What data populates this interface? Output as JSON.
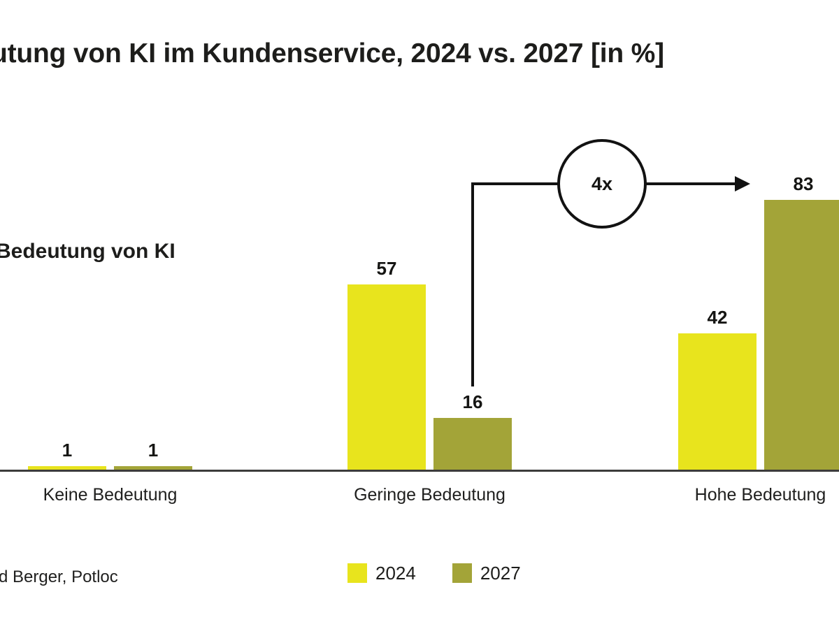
{
  "title_visible": "utung von KI im Kundenservice, 2024 vs. 2027 [in %]",
  "side_label": "Bedeutung von KI",
  "source_visible": "d Berger, Potloc",
  "annotation": {
    "label": "4x",
    "meaning": "4x increase of 2027 value from Geringe Bedeutung (16) to Hohe Bedeutung (83)"
  },
  "legend": [
    {
      "label": "2024",
      "color": "#E8E41D"
    },
    {
      "label": "2027",
      "color": "#A3A438"
    }
  ],
  "colors": {
    "series_2024": "#E8E41D",
    "series_2027": "#A3A438",
    "text": "#1D1D1B",
    "axis_line": "#3C3C3B",
    "annotation_line": "#121212"
  },
  "chart_data": {
    "type": "bar",
    "title": "utung von KI im Kundenservice, 2024 vs. 2027 [in %]",
    "unit": "%",
    "categories": [
      "Keine Bedeutung",
      "Geringe Bedeutung",
      "Hohe Bedeutung"
    ],
    "series": [
      {
        "name": "2024",
        "values": [
          1,
          57,
          42
        ]
      },
      {
        "name": "2027",
        "values": [
          1,
          16,
          83
        ]
      }
    ],
    "ylim": [
      0,
      100
    ],
    "grid": false,
    "value_labels": true,
    "legend_position": "bottom",
    "annotations": [
      {
        "text": "4x",
        "shape": "circle",
        "from_category": "Geringe Bedeutung",
        "from_series": "2027",
        "to_category": "Hohe Bedeutung",
        "to_series": "2027"
      }
    ]
  }
}
